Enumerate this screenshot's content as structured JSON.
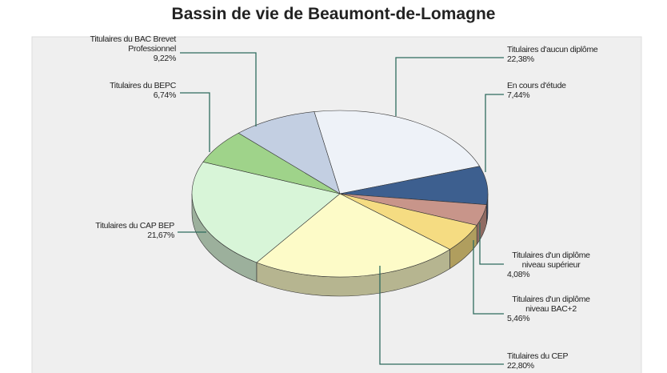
{
  "chart_data": {
    "type": "pie",
    "title": "Bassin de vie de Beaumont-de-Lomagne",
    "categories": [
      "Titulaires d'aucun diplôme",
      "En cours d'étude",
      "Titulaires d'un diplôme niveau supérieur",
      "Titulaires d'un diplôme niveau BAC+2",
      "Titulaires du CEP",
      "Titulaires du CAP BEP",
      "Titulaires du BEPC",
      "Titulaires du BAC Brevet Professionnel"
    ],
    "values": [
      22.38,
      7.44,
      4.08,
      5.46,
      22.8,
      21.67,
      6.74,
      9.22
    ],
    "value_labels": [
      "22,38%",
      "7,44%",
      "4,08%",
      "5,46%",
      "22,80%",
      "21,67%",
      "6,74%",
      "9,22%"
    ],
    "colors": [
      "#eef2f8",
      "#3d5f8f",
      "#c8958a",
      "#f5dc82",
      "#fdfbc8",
      "#d8f5d8",
      "#9fd38a",
      "#c3cfe2"
    ]
  }
}
